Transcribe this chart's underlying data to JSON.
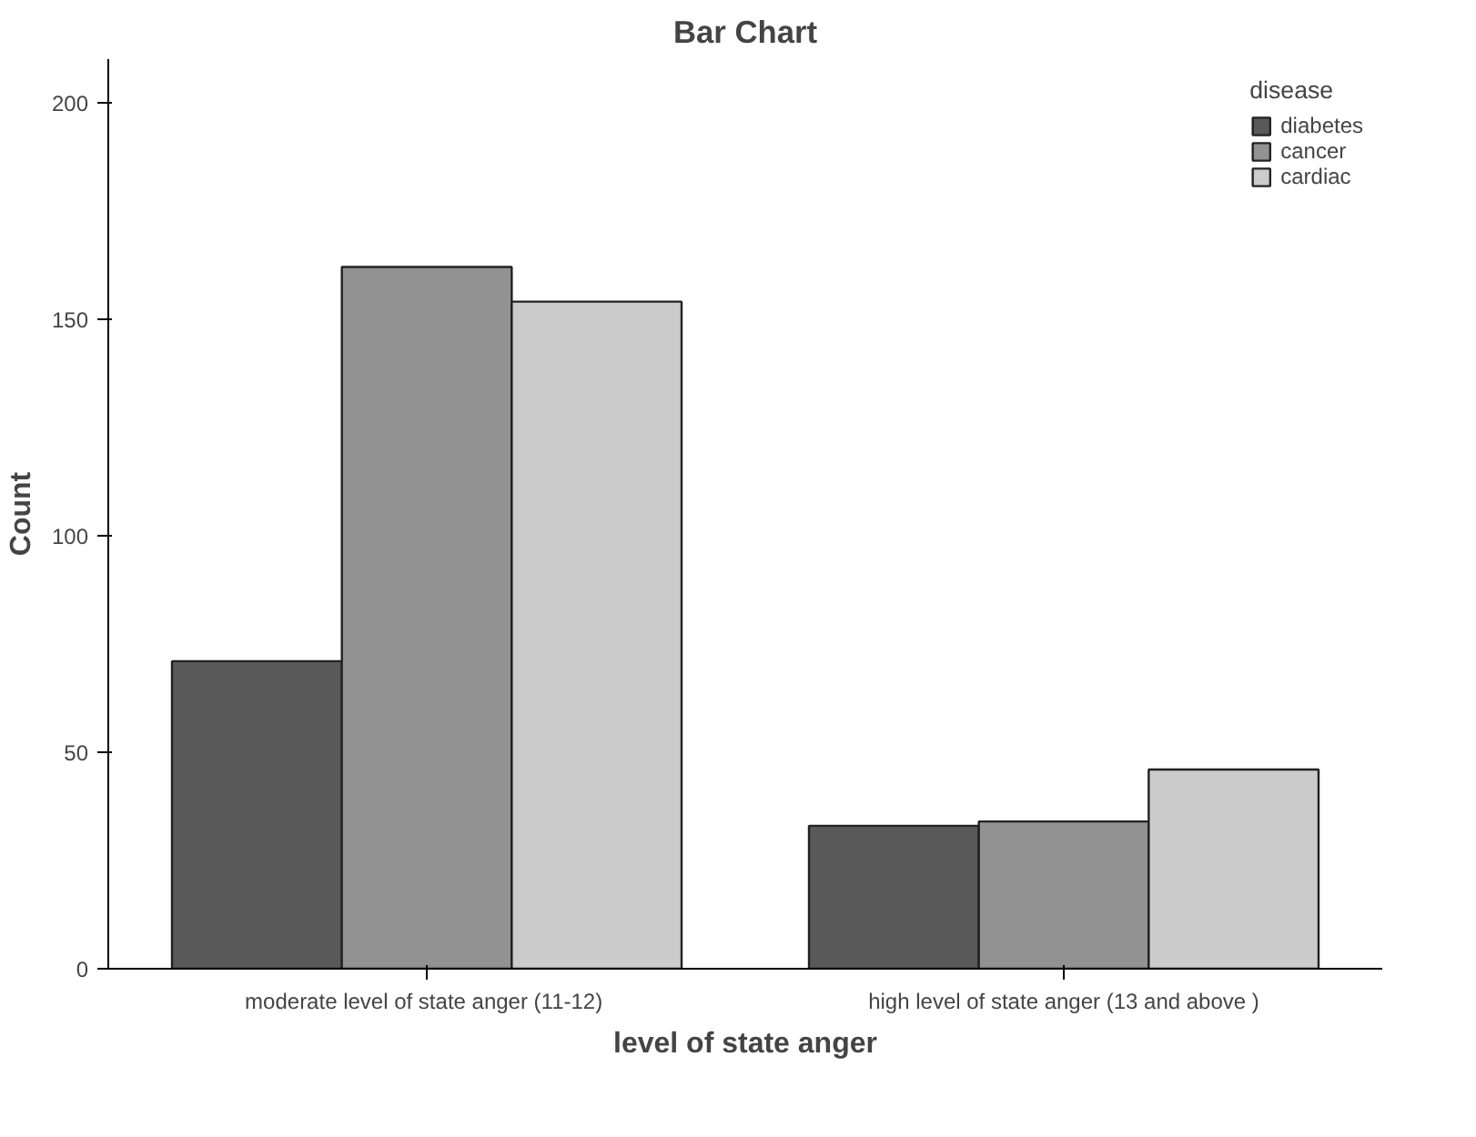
{
  "chart_data": {
    "type": "bar",
    "title": "Bar Chart",
    "xlabel": "level of state anger",
    "ylabel": "Count",
    "legend_title": "disease",
    "categories": [
      "moderate  level of state anger (11-12)",
      "high level of state anger (13 and above )"
    ],
    "series": [
      {
        "name": "diabetes",
        "color": "#595959",
        "values": [
          71,
          33
        ]
      },
      {
        "name": "cancer",
        "color": "#929292",
        "values": [
          162,
          34
        ]
      },
      {
        "name": "cardiac",
        "color": "#cbcbcb",
        "values": [
          154,
          46
        ]
      }
    ],
    "ylim": [
      0,
      210
    ],
    "yticks": [
      0,
      50,
      100,
      150,
      200
    ],
    "grid": false,
    "legend": "top right"
  }
}
